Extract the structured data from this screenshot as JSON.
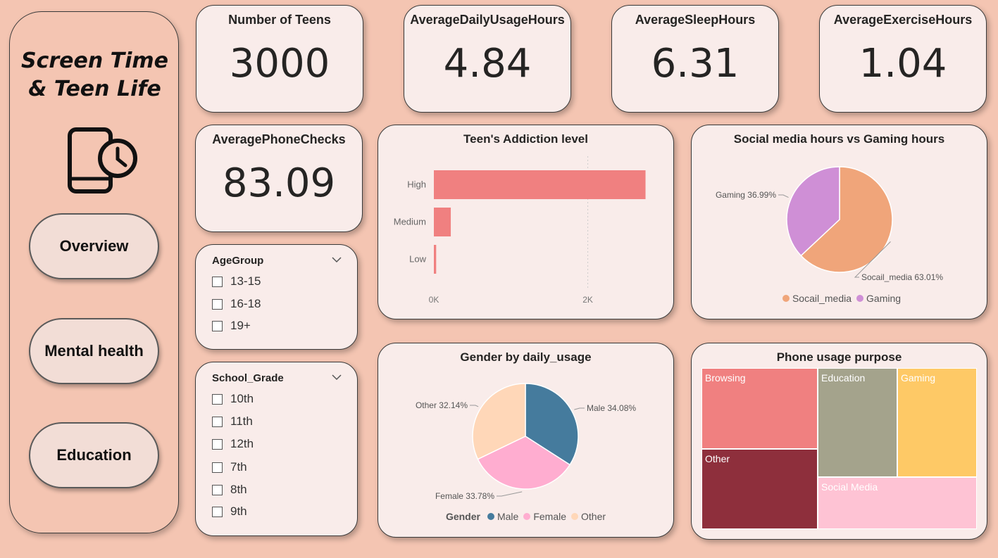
{
  "app": {
    "title": "Screen Time\n& Teen Life",
    "icon": "phone-clock-icon"
  },
  "nav": {
    "items": [
      {
        "label": "Overview"
      },
      {
        "label": "Mental health"
      },
      {
        "label": "Education"
      }
    ]
  },
  "kpis": [
    {
      "title": "Number of Teens",
      "value": "3000"
    },
    {
      "title": "AverageDailyUsageHours",
      "value": "4.84"
    },
    {
      "title": "AverageSleepHours",
      "value": "6.31"
    },
    {
      "title": "AverageExerciseHours",
      "value": "1.04"
    },
    {
      "title": "AveragePhoneChecks",
      "value": "83.09"
    }
  ],
  "slicers": {
    "age_group": {
      "title": "AgeGroup",
      "options": [
        "13-15",
        "16-18",
        "19+"
      ]
    },
    "school_grade": {
      "title": "School_Grade",
      "options": [
        "10th",
        "11th",
        "12th",
        "7th",
        "8th",
        "9th"
      ]
    }
  },
  "colors": {
    "page_bg": "#f4c5b2",
    "card_bg": "#f9ecea",
    "bar": "#f08080",
    "social": "#f0a57a",
    "gaming": "#cf8fd6",
    "male": "#457b9d",
    "female": "#ffadd0",
    "other": "#ffd7b8"
  },
  "chart_data": [
    {
      "id": "addiction",
      "type": "bar",
      "orientation": "horizontal",
      "title": "Teen's Addiction level",
      "categories": [
        "High",
        "Medium",
        "Low"
      ],
      "values": [
        2750,
        220,
        30
      ],
      "x_ticks": [
        {
          "value": 0,
          "label": "0K"
        },
        {
          "value": 2000,
          "label": "2K"
        }
      ],
      "xlim": [
        0,
        2800
      ],
      "grid": true
    },
    {
      "id": "social_gaming",
      "type": "pie",
      "title": "Social media hours vs Gaming hours",
      "categories": [
        "Socail_media",
        "Gaming"
      ],
      "values": [
        63.01,
        36.99
      ],
      "data_labels": [
        "Socail_media 63.01%",
        "Gaming 36.99%"
      ],
      "legend": {
        "labels": [
          "Socail_media",
          "Gaming"
        ],
        "position": "bottom"
      }
    },
    {
      "id": "gender",
      "type": "pie",
      "title": "Gender by daily_usage",
      "categories": [
        "Male",
        "Female",
        "Other"
      ],
      "values": [
        34.08,
        33.78,
        32.14
      ],
      "data_labels": [
        "Male 34.08%",
        "Female 33.78%",
        "Other 32.14%"
      ],
      "legend": {
        "title": "Gender",
        "labels": [
          "Male",
          "Female",
          "Other"
        ],
        "position": "bottom"
      }
    },
    {
      "id": "purpose",
      "type": "treemap",
      "title": "Phone usage purpose",
      "categories": [
        "Browsing",
        "Other",
        "Education",
        "Gaming",
        "Social Media"
      ],
      "values": [
        21,
        20,
        19,
        19,
        21
      ],
      "colors": [
        "#f08080",
        "#8e2f3c",
        "#a4a38c",
        "#fec966",
        "#fec3d4"
      ]
    }
  ]
}
